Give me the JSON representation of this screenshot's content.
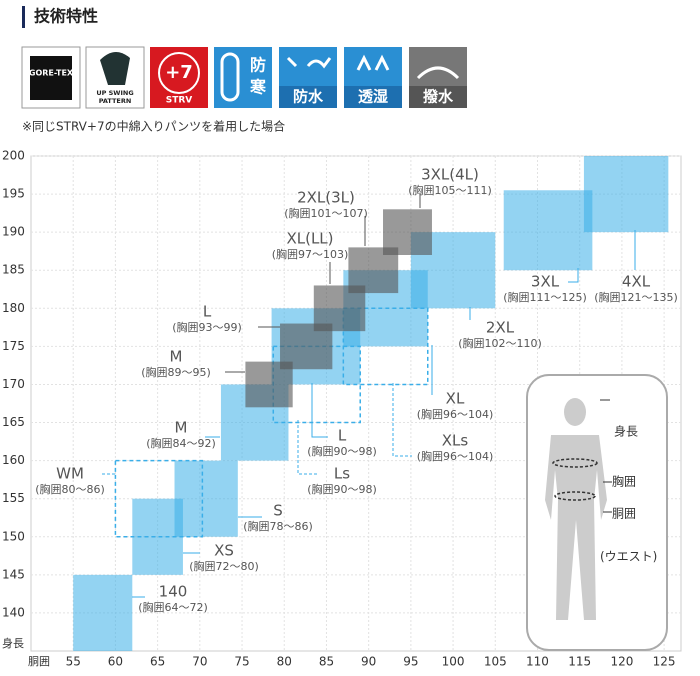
{
  "header": {
    "title": "技術特性"
  },
  "icons": [
    [
      "GORE-TEX"
    ],
    [
      "UP SWING",
      "PATTERN"
    ],
    [
      "+7",
      "STRV"
    ],
    [
      "防",
      "寒"
    ],
    [
      "防水"
    ],
    [
      "透湿"
    ],
    [
      "撥水"
    ]
  ],
  "note": "※同じSTRV+7の中綿入りパンツを着用した場合",
  "body_labels": [
    "身長",
    "胸囲",
    "胴囲",
    "(ウエスト)"
  ],
  "chart_data": {
    "type": "size-chart",
    "x_label": "胴囲",
    "y_label": "身長",
    "xlim": [
      50,
      127
    ],
    "ylim": [
      135,
      200
    ],
    "xticks": [
      55,
      60,
      65,
      70,
      75,
      80,
      85,
      90,
      95,
      100,
      105,
      110,
      115,
      120,
      125
    ],
    "yticks": [
      140,
      145,
      150,
      155,
      160,
      165,
      170,
      175,
      180,
      185,
      190,
      195,
      200
    ],
    "grid": true,
    "groups": [
      {
        "color": "#3aaee8",
        "style": "filled",
        "boxes": [
          {
            "label": "140",
            "chest": "(胸囲64～72)",
            "x": [
              55,
              62
            ],
            "y": [
              135,
              145
            ]
          },
          {
            "label": "XS",
            "chest": "(胸囲72～80)",
            "x": [
              62,
              68
            ],
            "y": [
              145,
              155
            ]
          },
          {
            "label": "S",
            "chest": "(胸囲78～86)",
            "x": [
              67,
              74.5
            ],
            "y": [
              150,
              160
            ]
          },
          {
            "label": "M",
            "chest": "(胸囲84～92)",
            "x": [
              72.5,
              80.5
            ],
            "y": [
              160,
              170
            ]
          },
          {
            "label": "L",
            "chest": "(胸囲90～98)",
            "x": [
              78.5,
              89
            ],
            "y": [
              170,
              180
            ]
          },
          {
            "label": "XL",
            "chest": "(胸囲96～104)",
            "x": [
              87,
              97
            ],
            "y": [
              175,
              185
            ]
          },
          {
            "label": "2XL",
            "chest": "(胸囲102～110)",
            "x": [
              95,
              105
            ],
            "y": [
              180,
              190
            ]
          },
          {
            "label": "3XL",
            "chest": "(胸囲111～125)",
            "x": [
              106,
              116.5
            ],
            "y": [
              185,
              195.5
            ]
          },
          {
            "label": "4XL",
            "chest": "(胸囲121～135)",
            "x": [
              115.5,
              125.5
            ],
            "y": [
              190,
              200
            ]
          }
        ]
      },
      {
        "color": "#3aaee8",
        "style": "dashed",
        "boxes": [
          {
            "label": "WM",
            "chest": "(胸囲80～86)",
            "x": [
              60,
              70.3
            ],
            "y": [
              150,
              160
            ]
          },
          {
            "label": "Ls",
            "chest": "(胸囲90～98)",
            "x": [
              78.7,
              89
            ],
            "y": [
              165,
              175
            ]
          },
          {
            "label": "XLs",
            "chest": "(胸囲96～104)",
            "x": [
              87,
              97
            ],
            "y": [
              170,
              180
            ]
          }
        ]
      },
      {
        "color": "#555555",
        "style": "filled",
        "boxes": [
          {
            "label": "M",
            "chest": "(胸囲89～95)",
            "x": [
              75.4,
              81
            ],
            "y": [
              167,
              173
            ]
          },
          {
            "label": "L",
            "chest": "(胸囲93～99)",
            "x": [
              79.5,
              85.7
            ],
            "y": [
              172,
              178
            ]
          },
          {
            "label": "XL(LL)",
            "chest": "(胸囲97～103)",
            "x": [
              83.5,
              89.6
            ],
            "y": [
              177,
              183
            ]
          },
          {
            "label": "2XL(3L)",
            "chest": "(胸囲101～107)",
            "x": [
              87.6,
              93.5
            ],
            "y": [
              182,
              188
            ]
          },
          {
            "label": "3XL(4L)",
            "chest": "(胸囲105～111)",
            "x": [
              91.7,
              97.5
            ],
            "y": [
              187,
              193
            ]
          }
        ]
      }
    ]
  }
}
